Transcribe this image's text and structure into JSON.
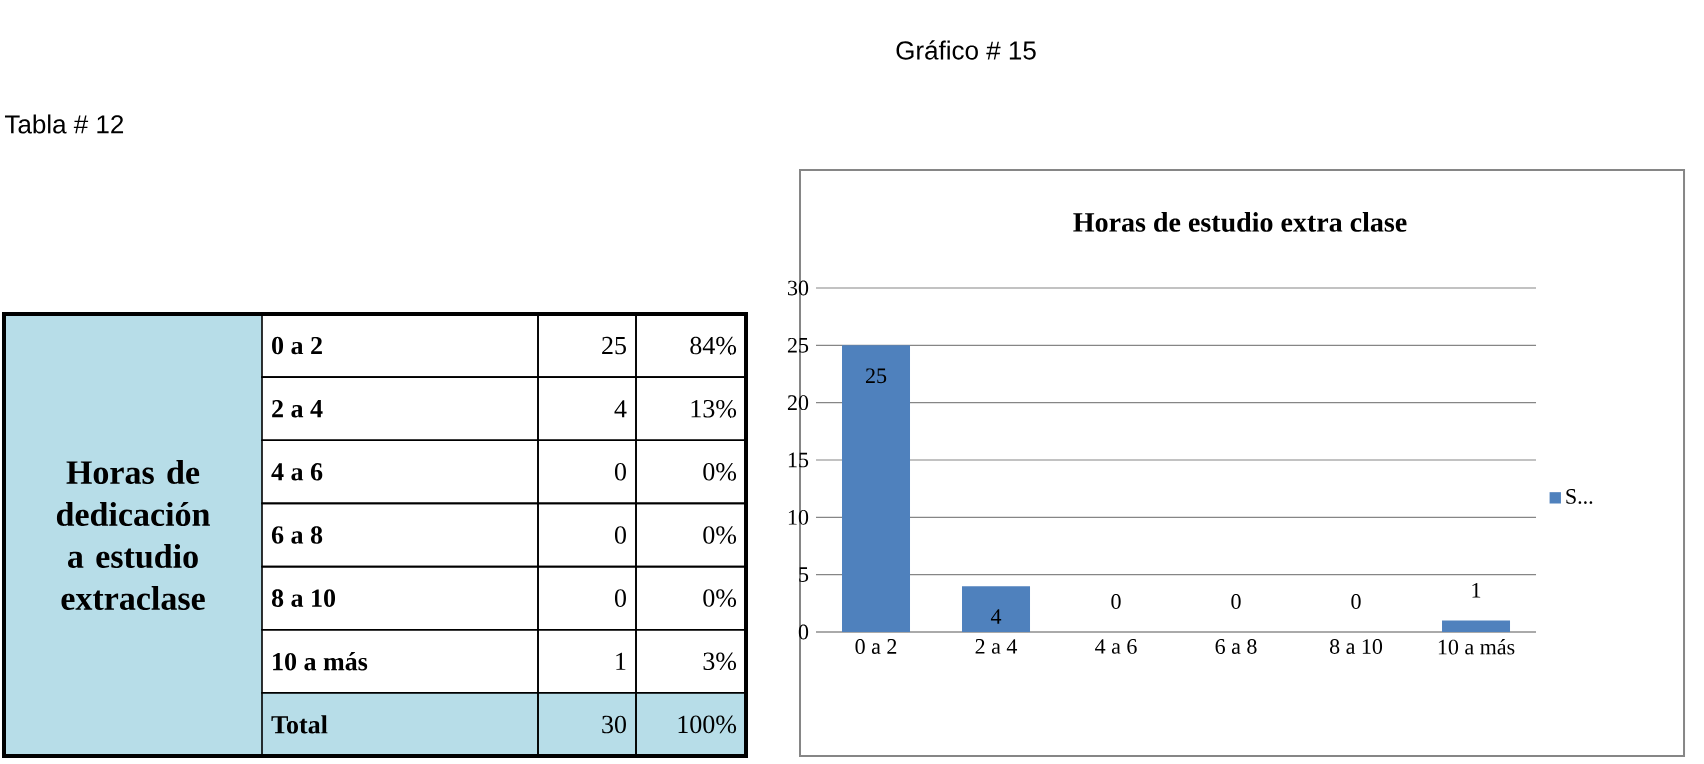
{
  "chart_data": {
    "type": "bar",
    "title": "Horas de estudio extra clase",
    "categories": [
      "0 a 2",
      "2 a 4",
      "4 a 6",
      "6 a 8",
      "8 a 10",
      "10 a más"
    ],
    "series": [
      {
        "name": "S...",
        "color": "#4f81bd",
        "values": [
          25,
          4,
          0,
          0,
          0,
          1
        ]
      }
    ],
    "ylim": [
      0,
      30
    ],
    "yticks": [
      0,
      5,
      10,
      15,
      20,
      25,
      30
    ],
    "grid": "y",
    "legend": "right",
    "data_labels": true,
    "annotations": [
      "Gráfico #  15",
      "Tabla #  12",
      "Horas de dedicación a estudio extraclase",
      "0 a 2",
      "25",
      "84%",
      "2 a 4",
      "4",
      "13%",
      "4 a 6",
      "0",
      "0%",
      "6 a 8",
      "0",
      "0%",
      "8 a 10",
      "0",
      "0%",
      "10 a más",
      "1",
      "3%",
      "Total",
      "30",
      "100%"
    ]
  }
}
